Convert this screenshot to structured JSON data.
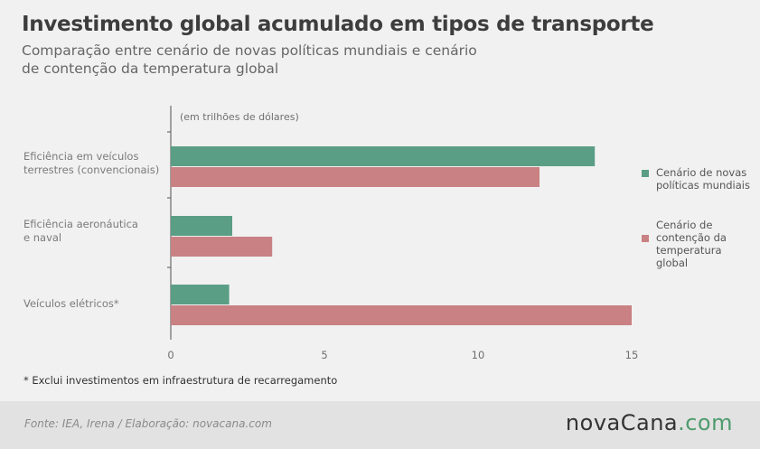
{
  "header": {
    "title": "Investimento global acumulado em tipos de transporte",
    "subtitle": "Comparação entre cenário de novas políticas mundiais e cenário de contenção da temperatura global"
  },
  "chart_data": {
    "type": "bar",
    "orientation": "horizontal",
    "unit_note": "(em trilhões de dólares)",
    "categories": [
      "Eficiência em veículos terrestres (convencionais)",
      "Eficiência aeronáutica e naval",
      "Veículos elétricos*"
    ],
    "series": [
      {
        "name": "Cenário de novas políticas mundiais",
        "values": [
          13.8,
          2.0,
          1.9
        ],
        "color": "#5a9e86"
      },
      {
        "name": "Cenário de contenção da temperatura global",
        "values": [
          12.0,
          3.3,
          15.0
        ],
        "color": "#c98183"
      }
    ],
    "xlim": [
      0,
      15
    ],
    "xticks": [
      "0",
      "5",
      "10",
      "15"
    ],
    "grid": false,
    "legend_position": "right"
  },
  "footnote": "* Exclui investimentos em infraestrutura de recarregamento",
  "footer": {
    "source": "Fonte:  IEA, Irena / Elaboração: novacana.com",
    "logo_main": "novaCana",
    "logo_suffix": ".com"
  }
}
